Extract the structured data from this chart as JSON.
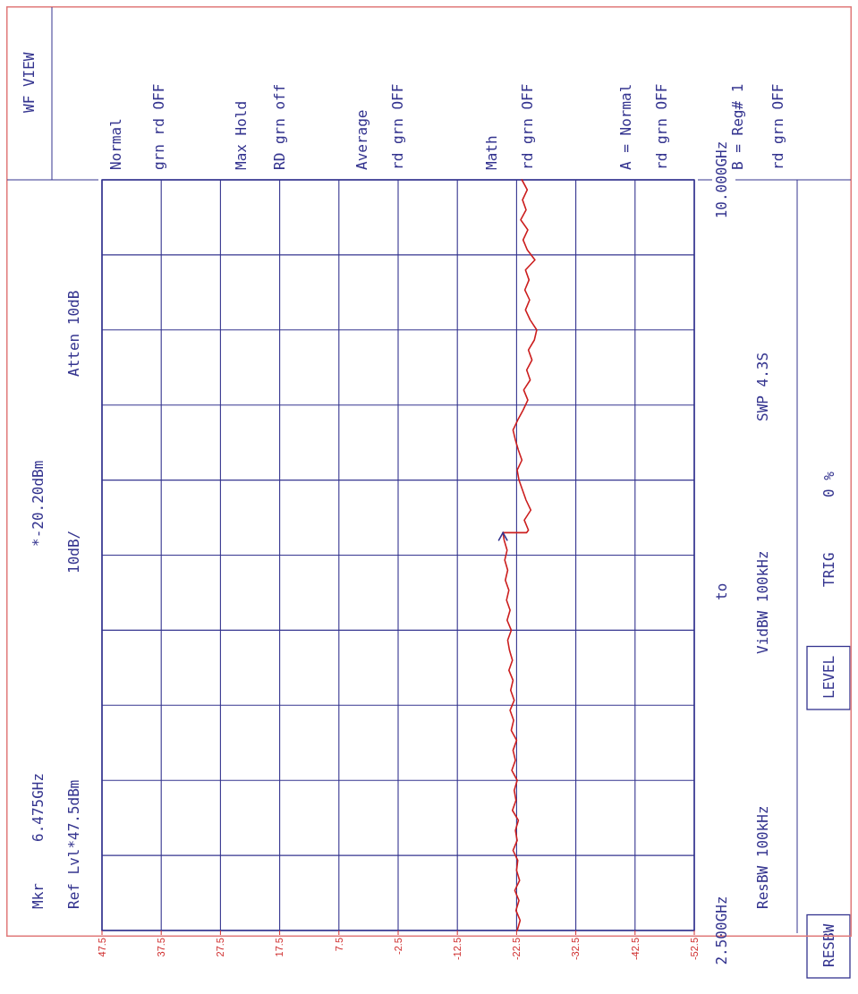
{
  "chart_data": {
    "type": "line",
    "xlim": [
      47.5,
      -52.5
    ],
    "ylim": [
      2.5,
      10
    ],
    "xticks": [
      47.5,
      37.5,
      27.5,
      17.5,
      7.5,
      -2.5,
      -12.5,
      -22.5,
      -32.5,
      -42.5,
      -52.5
    ],
    "yticks": [
      {
        "value": 2.5,
        "label": "2.500GHz"
      },
      {
        "value": 3.25,
        "label": null
      },
      {
        "value": 4,
        "label": null
      },
      {
        "value": 4.75,
        "label": null
      },
      {
        "value": 5.5,
        "label": null
      },
      {
        "value": 6.25,
        "label": null
      },
      {
        "value": 7,
        "label": null
      },
      {
        "value": 7.75,
        "label": null
      },
      {
        "value": 8.5,
        "label": null
      },
      {
        "value": 9.25,
        "label": null
      },
      {
        "value": 10,
        "label": "10.000GHz"
      }
    ],
    "grid": true,
    "series": [
      {
        "color": "#cc1f1f",
        "values": [
          2.5,
          2.6,
          2.7,
          2.8,
          2.9,
          3.0,
          3.1,
          3.2,
          3.3,
          3.4,
          3.5,
          3.6,
          3.7,
          3.8,
          3.9,
          4.0,
          4.1,
          4.2,
          4.3,
          4.4,
          4.5,
          4.6,
          4.7,
          4.8,
          4.9,
          5.0,
          5.1,
          5.2,
          5.3,
          5.4,
          5.5,
          5.6,
          5.7,
          5.8,
          5.9,
          6.0,
          6.1,
          6.2,
          6.3,
          6.4,
          6.475,
          6.475,
          6.5,
          6.6,
          6.7,
          6.8,
          6.9,
          7.0,
          7.1,
          7.2,
          7.3,
          7.4,
          7.5,
          7.6,
          7.7,
          7.8,
          7.9,
          8.0,
          8.1,
          8.2,
          8.3,
          8.4,
          8.5,
          8.6,
          8.7,
          8.8,
          8.9,
          9.0,
          9.1,
          9.2,
          9.3,
          9.4,
          9.5,
          9.6,
          9.7,
          9.8,
          9.9,
          10.0
        ],
        "x": [
          -22.6,
          -23.1,
          -22.4,
          -22.9,
          -22.2,
          -23.0,
          -22.5,
          -22.7,
          -21.9,
          -22.6,
          -22.3,
          -22.8,
          -21.8,
          -22.4,
          -22.1,
          -22.6,
          -21.7,
          -22.3,
          -21.9,
          -22.5,
          -21.6,
          -22.0,
          -21.4,
          -22.1,
          -21.5,
          -21.9,
          -21.2,
          -21.8,
          -21.3,
          -21.0,
          -21.6,
          -20.9,
          -21.4,
          -20.8,
          -21.2,
          -20.6,
          -21.0,
          -20.5,
          -20.9,
          -20.4,
          -20.2,
          -24.2,
          -24.5,
          -23.8,
          -24.9,
          -24.1,
          -23.5,
          -22.9,
          -22.6,
          -23.4,
          -22.8,
          -22.3,
          -21.9,
          -22.7,
          -23.6,
          -24.4,
          -23.7,
          -24.8,
          -24.2,
          -25.1,
          -24.5,
          -25.5,
          -25.9,
          -24.8,
          -24.0,
          -24.7,
          -23.9,
          -24.6,
          -24.0,
          -25.6,
          -24.3,
          -23.6,
          -24.4,
          -23.2,
          -24.1,
          -23.5,
          -24.3,
          -23.4
        ]
      }
    ],
    "annotations": [
      "Mkr",
      "6.475GHz",
      "*-20.20dBm",
      "Ref Lvl*47.5dBm",
      "10dB/",
      "Atten 10dB",
      "to",
      "ResBW 100kHz",
      "VidBW 100kHz",
      "SWP 4.3S",
      "RESBW",
      "LEVEL",
      "TRIG",
      "0 %",
      "WF VIEW",
      "Normal",
      "grn rd OFF",
      "Max Hold",
      "RD grn off",
      "Average",
      "rd grn OFF",
      "Math",
      "rd grn OFF",
      "A = Normal",
      "rd grn OFF",
      "B = Reg# 1",
      "rd grn OFF"
    ]
  }
}
